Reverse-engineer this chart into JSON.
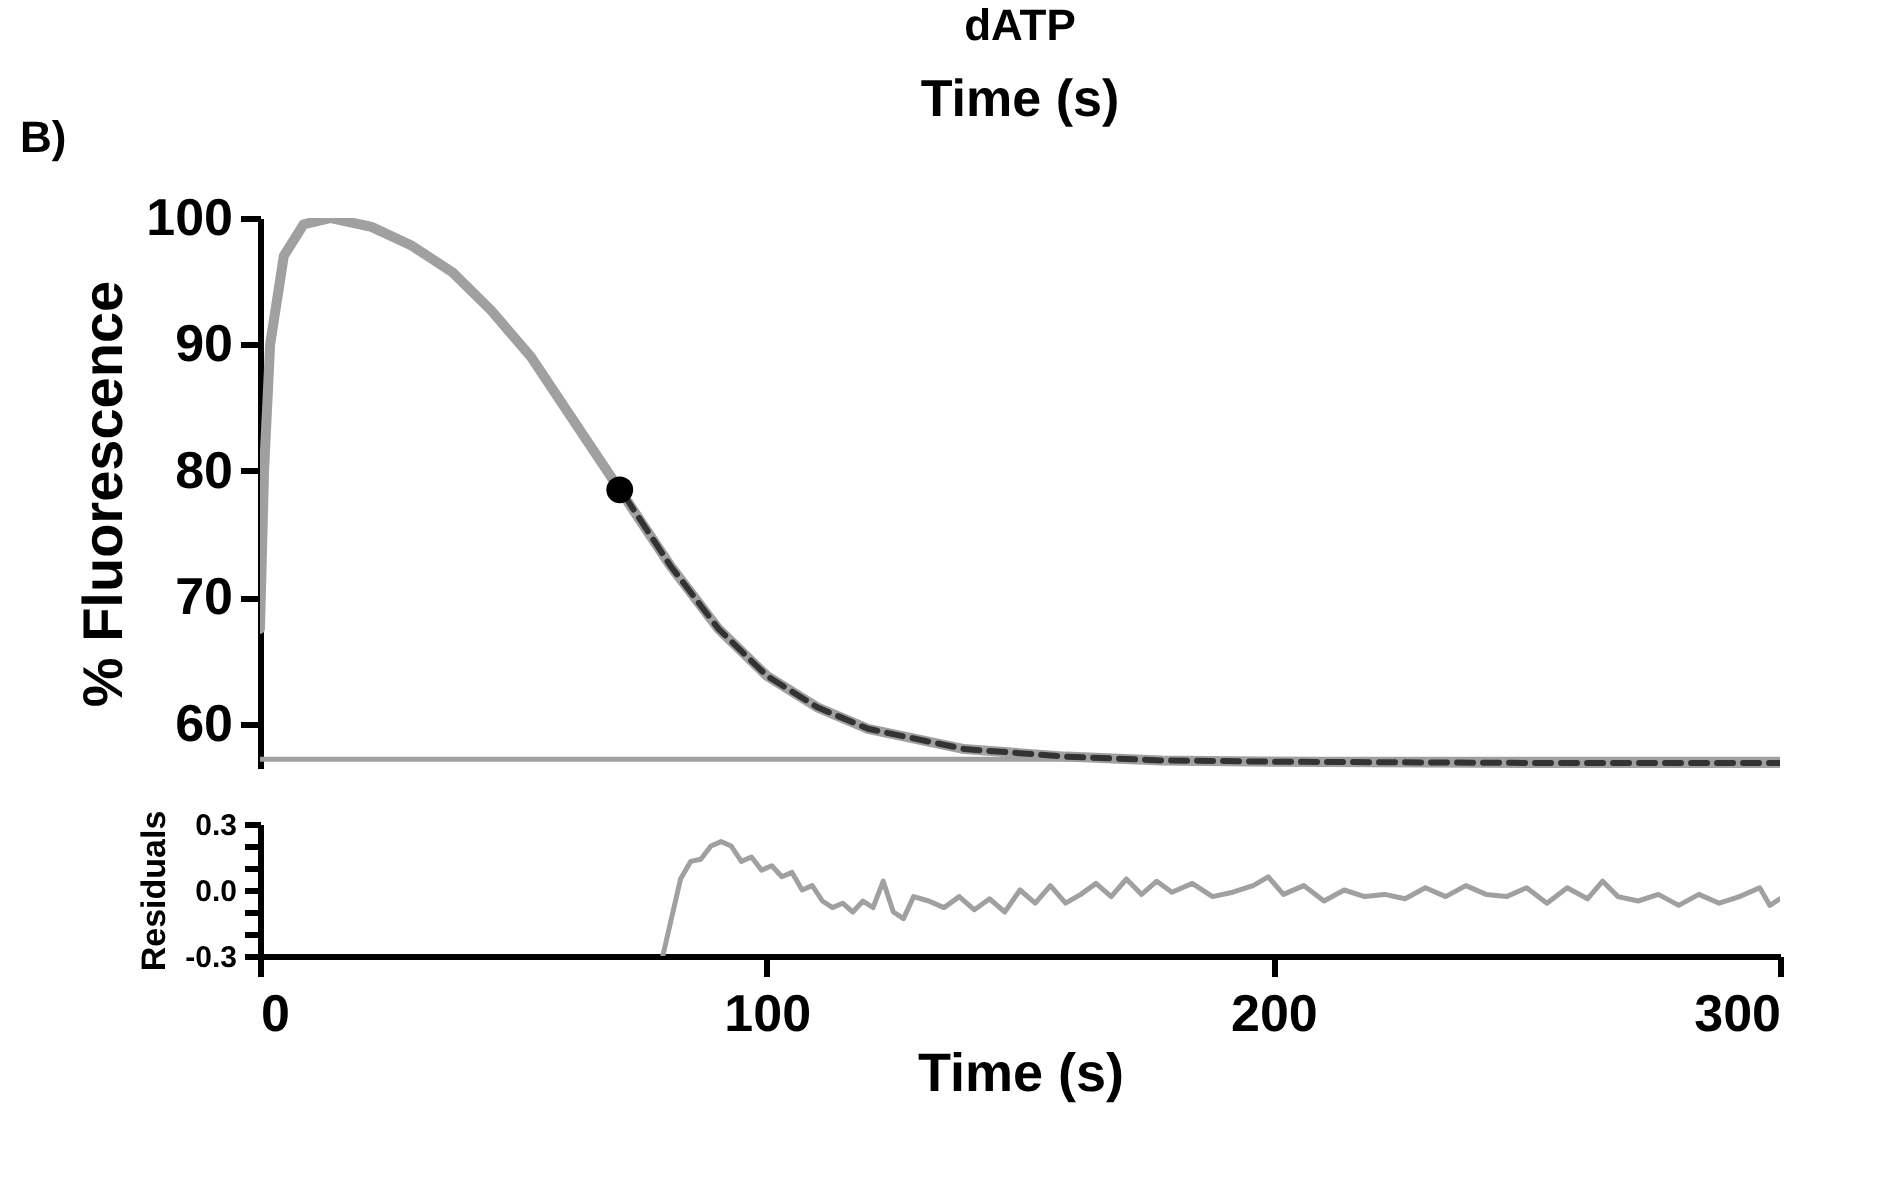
{
  "chart_data": [
    {
      "type": "line",
      "title": "dATP",
      "ylabel": "% Fluorescence",
      "xlim": [
        0,
        300
      ],
      "ylim": [
        56.5,
        100
      ],
      "yticks": [
        60,
        70,
        80,
        90,
        100
      ],
      "tick_labels": "y",
      "grid": false,
      "annotations": [
        "B)",
        "Time (s)"
      ],
      "series": [
        {
          "color": "#a0a0a2",
          "x": [
            0,
            0.8,
            2,
            4.7,
            8.6,
            14,
            22,
            30,
            38,
            45.6,
            53.5,
            61,
            71,
            81,
            90.5,
            100,
            110,
            120,
            139,
            159,
            178,
            200,
            250,
            300
          ],
          "values": [
            67.5,
            80,
            90,
            97,
            99.5,
            100,
            99.3,
            97.8,
            95.7,
            92.7,
            89,
            84.5,
            78.5,
            72.5,
            67.5,
            63.8,
            61.3,
            59.6,
            58.0,
            57.4,
            57.1,
            57.0,
            56.9,
            56.9
          ]
        },
        {
          "color": "#a0a0a2",
          "x": [
            0,
            300
          ],
          "values": [
            57.2,
            57.2
          ]
        },
        {
          "type": "line",
          "line_style": "dashed",
          "color": "#333333",
          "x": [
            72,
            81,
            90.5,
            100,
            110,
            120,
            139,
            159,
            178,
            200,
            250,
            300
          ],
          "values": [
            78.0,
            72.5,
            67.5,
            63.8,
            61.3,
            59.6,
            58.0,
            57.4,
            57.1,
            57.0,
            56.9,
            56.9
          ]
        },
        {
          "type": "scatter",
          "marker": "circle",
          "color": "#000000",
          "x": [
            71
          ],
          "values": [
            78.5
          ]
        }
      ]
    },
    {
      "type": "line",
      "xlabel": "Time (s)",
      "ylabel": "Residuals",
      "xlim": [
        0,
        300
      ],
      "xticks": [
        0,
        100,
        200,
        300
      ],
      "ylim": [
        -0.3,
        0.3
      ],
      "yticks": [
        -0.3,
        {
          "value": -0.2,
          "label": null
        },
        {
          "value": -0.1,
          "label": null
        },
        {
          "value": 0,
          "label": "0.0"
        },
        {
          "value": 0.1,
          "label": null
        },
        {
          "value": 0.2,
          "label": null
        },
        0.3
      ],
      "grid": false,
      "series": [
        {
          "color": "#a0a0a2",
          "x": [
            79.5,
            81,
            83,
            85,
            87,
            89,
            91,
            93,
            95,
            97,
            99,
            101,
            103,
            105,
            107,
            109,
            111,
            113,
            115,
            117,
            119,
            121,
            123,
            125,
            127,
            129,
            132,
            135,
            138,
            141,
            144,
            147,
            150,
            153,
            156,
            159,
            162,
            165,
            168,
            171,
            174,
            177,
            180,
            184,
            188,
            192,
            196,
            199,
            202,
            206,
            210,
            214,
            218,
            222,
            226,
            230,
            234,
            238,
            242,
            246,
            250,
            254,
            258,
            262,
            265,
            268,
            272,
            276,
            280,
            284,
            288,
            292,
            296,
            298,
            300
          ],
          "values": [
            -0.3,
            -0.15,
            0.05,
            0.13,
            0.14,
            0.2,
            0.22,
            0.2,
            0.13,
            0.15,
            0.09,
            0.11,
            0.06,
            0.08,
            0.0,
            0.02,
            -0.05,
            -0.08,
            -0.06,
            -0.1,
            -0.05,
            -0.08,
            0.04,
            -0.1,
            -0.13,
            -0.03,
            -0.05,
            -0.08,
            -0.03,
            -0.09,
            -0.04,
            -0.1,
            0.0,
            -0.06,
            0.02,
            -0.06,
            -0.02,
            0.03,
            -0.03,
            0.05,
            -0.02,
            0.04,
            -0.01,
            0.03,
            -0.03,
            -0.01,
            0.02,
            0.06,
            -0.02,
            0.02,
            -0.05,
            0.0,
            -0.03,
            -0.02,
            -0.04,
            0.01,
            -0.03,
            0.02,
            -0.02,
            -0.03,
            0.01,
            -0.06,
            0.01,
            -0.04,
            0.04,
            -0.03,
            -0.05,
            -0.02,
            -0.07,
            -0.02,
            -0.06,
            -0.03,
            0.01,
            -0.07,
            -0.04
          ]
        }
      ]
    }
  ]
}
